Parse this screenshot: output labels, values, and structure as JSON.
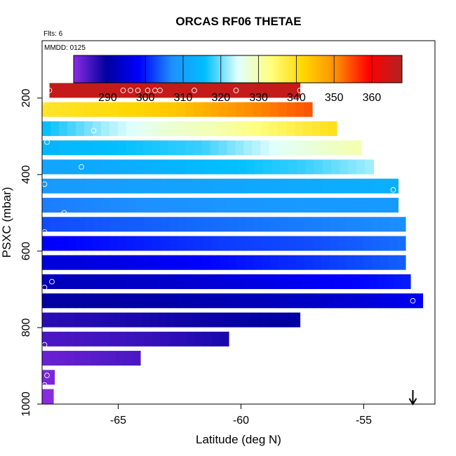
{
  "chart_data": {
    "type": "heatmap",
    "title": "ORCAS RF06 THETAE",
    "flights_note": "Flts: 6",
    "date_note": "MMDD: 0125",
    "xlabel": "Latitude (deg N)",
    "ylabel": "PSXC (mbar)",
    "xlim": [
      -68.1,
      -52.1
    ],
    "ylim": [
      1000,
      50
    ],
    "y_reversed": true,
    "grid": false,
    "x_ticks": [
      -65,
      -60,
      -55
    ],
    "x_tick_labels": [
      "-65",
      "-60",
      "-55"
    ],
    "y_ticks": [
      200,
      400,
      600,
      800,
      1000
    ],
    "y_tick_labels": [
      "200",
      "400",
      "600",
      "800",
      "1000"
    ],
    "colorbar": {
      "range": [
        281,
        368
      ],
      "ticks": [
        290,
        300,
        310,
        320,
        330,
        340,
        350,
        360
      ],
      "tick_labels": [
        "290",
        "300",
        "310",
        "320",
        "330",
        "340",
        "350",
        "360"
      ],
      "colors": [
        "#8a2be2",
        "#0000a0",
        "#0000ff",
        "#1e90ff",
        "#00bfff",
        "#e0ffff",
        "#ffff80",
        "#ffd700",
        "#ff8c00",
        "#ff0000",
        "#b22222"
      ]
    },
    "layers": [
      {
        "p": 180,
        "lat": [
          -67.8,
          -57.6
        ],
        "theta": [
          366,
          366
        ]
      },
      {
        "p": 230,
        "lat": [
          -68.1,
          -57.1
        ],
        "theta": [
          339,
          341,
          344,
          350,
          354
        ]
      },
      {
        "p": 280,
        "lat": [
          -68.1,
          -56.1
        ],
        "theta": [
          316,
          322,
          327,
          330,
          335,
          340
        ]
      },
      {
        "p": 330,
        "lat": [
          -68.1,
          -55.1
        ],
        "theta": [
          314,
          316,
          318,
          325,
          330
        ]
      },
      {
        "p": 380,
        "lat": [
          -68.1,
          -54.6
        ],
        "theta": [
          311,
          312,
          314,
          316,
          318,
          322
        ]
      },
      {
        "p": 430,
        "lat": [
          -68.1,
          -53.6
        ],
        "theta": [
          309,
          310,
          311,
          312,
          313
        ]
      },
      {
        "p": 480,
        "lat": [
          -68.1,
          -53.6
        ],
        "theta": [
          306,
          307,
          308,
          309,
          309
        ]
      },
      {
        "p": 530,
        "lat": [
          -68.1,
          -53.3
        ],
        "theta": [
          303,
          304,
          305,
          306,
          307
        ]
      },
      {
        "p": 580,
        "lat": [
          -68.1,
          -53.3
        ],
        "theta": [
          298,
          300,
          302,
          303,
          305
        ]
      },
      {
        "p": 630,
        "lat": [
          -68.1,
          -53.3
        ],
        "theta": [
          295,
          296,
          298,
          300,
          302,
          304
        ]
      },
      {
        "p": 680,
        "lat": [
          -68.1,
          -53.1
        ],
        "theta": [
          292,
          293,
          294,
          296,
          298,
          300
        ]
      },
      {
        "p": 730,
        "lat": [
          -68.1,
          -52.6
        ],
        "theta": [
          290,
          290,
          291,
          292,
          294,
          297
        ]
      },
      {
        "p": 780,
        "lat": [
          -68.1,
          -57.6
        ],
        "theta": [
          287,
          288,
          289,
          290
        ]
      },
      {
        "p": 830,
        "lat": [
          -68.1,
          -60.5
        ],
        "theta": [
          285,
          286,
          288
        ]
      },
      {
        "p": 880,
        "lat": [
          -68.1,
          -64.1
        ],
        "theta": [
          283,
          284,
          285
        ]
      },
      {
        "p": 930,
        "lat": [
          -68.1,
          -67.6
        ],
        "theta": [
          282
        ]
      },
      {
        "p": 980,
        "lat": [
          -68.1,
          -68.1
        ],
        "theta": [
          281
        ]
      }
    ],
    "points": [
      {
        "lat": -67.8,
        "p": 180
      },
      {
        "lat": -64.8,
        "p": 180
      },
      {
        "lat": -64.5,
        "p": 180
      },
      {
        "lat": -64.2,
        "p": 180
      },
      {
        "lat": -63.8,
        "p": 180
      },
      {
        "lat": -63.5,
        "p": 180
      },
      {
        "lat": -63.3,
        "p": 180
      },
      {
        "lat": -61.9,
        "p": 180
      },
      {
        "lat": -60.2,
        "p": 180
      },
      {
        "lat": -57.6,
        "p": 180
      },
      {
        "lat": -68.1,
        "p": 210
      },
      {
        "lat": -66.0,
        "p": 285
      },
      {
        "lat": -67.9,
        "p": 315
      },
      {
        "lat": -66.5,
        "p": 380
      },
      {
        "lat": -68.0,
        "p": 425
      },
      {
        "lat": -53.8,
        "p": 440
      },
      {
        "lat": -67.2,
        "p": 500
      },
      {
        "lat": -68.0,
        "p": 550
      },
      {
        "lat": -67.7,
        "p": 680
      },
      {
        "lat": -68.0,
        "p": 695
      },
      {
        "lat": -53.0,
        "p": 730
      },
      {
        "lat": -68.0,
        "p": 845
      },
      {
        "lat": -67.9,
        "p": 925
      },
      {
        "lat": -68.0,
        "p": 950
      }
    ],
    "arrow_lat": -53.0
  }
}
